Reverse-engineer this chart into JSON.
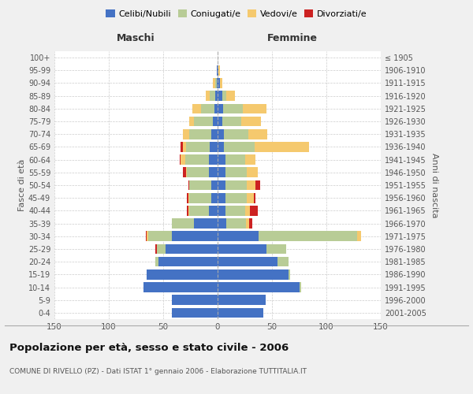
{
  "age_groups": [
    "0-4",
    "5-9",
    "10-14",
    "15-19",
    "20-24",
    "25-29",
    "30-34",
    "35-39",
    "40-44",
    "45-49",
    "50-54",
    "55-59",
    "60-64",
    "65-69",
    "70-74",
    "75-79",
    "80-84",
    "85-89",
    "90-94",
    "95-99",
    "100+"
  ],
  "birth_years": [
    "2001-2005",
    "1996-2000",
    "1991-1995",
    "1986-1990",
    "1981-1985",
    "1976-1980",
    "1971-1975",
    "1966-1970",
    "1961-1965",
    "1956-1960",
    "1951-1955",
    "1946-1950",
    "1941-1945",
    "1936-1940",
    "1931-1935",
    "1926-1930",
    "1921-1925",
    "1916-1920",
    "1911-1915",
    "1906-1910",
    "≤ 1905"
  ],
  "male_celibi": [
    42,
    42,
    68,
    65,
    54,
    48,
    42,
    22,
    8,
    6,
    6,
    8,
    8,
    7,
    6,
    4,
    3,
    2,
    1,
    1,
    0
  ],
  "male_coniugati": [
    0,
    0,
    0,
    0,
    3,
    8,
    22,
    20,
    18,
    20,
    20,
    20,
    22,
    22,
    20,
    18,
    12,
    5,
    1,
    0,
    0
  ],
  "male_vedovi": [
    0,
    0,
    0,
    0,
    0,
    0,
    1,
    0,
    1,
    1,
    0,
    1,
    4,
    3,
    6,
    4,
    8,
    4,
    2,
    0,
    0
  ],
  "male_divorziati": [
    0,
    0,
    0,
    0,
    0,
    1,
    1,
    0,
    1,
    1,
    1,
    3,
    1,
    2,
    0,
    0,
    0,
    0,
    0,
    0,
    0
  ],
  "female_celibi": [
    42,
    44,
    75,
    65,
    55,
    45,
    38,
    8,
    7,
    7,
    7,
    7,
    7,
    6,
    6,
    4,
    5,
    4,
    2,
    1,
    0
  ],
  "female_coniugati": [
    0,
    0,
    2,
    2,
    10,
    18,
    90,
    18,
    18,
    20,
    20,
    20,
    18,
    28,
    22,
    18,
    18,
    4,
    0,
    0,
    0
  ],
  "female_vedovi": [
    0,
    0,
    0,
    0,
    0,
    0,
    4,
    3,
    5,
    6,
    8,
    10,
    10,
    50,
    18,
    18,
    22,
    8,
    2,
    1,
    0
  ],
  "female_divorziati": [
    0,
    0,
    0,
    0,
    0,
    0,
    0,
    3,
    7,
    2,
    4,
    0,
    0,
    0,
    0,
    0,
    0,
    0,
    0,
    0,
    0
  ],
  "colors": {
    "celibi": "#4472c4",
    "coniugati": "#b8cc96",
    "vedovi": "#f5c96e",
    "divorziati": "#cc2222"
  },
  "title": "Popolazione per età, sesso e stato civile - 2006",
  "subtitle": "COMUNE DI RIVELLO (PZ) - Dati ISTAT 1° gennaio 2006 - Elaborazione TUTTITALIA.IT",
  "ylabel_left": "Fasce di età",
  "ylabel_right": "Anni di nascita",
  "xlabel_left": "Maschi",
  "xlabel_right": "Femmine",
  "xlim": 150,
  "xticks": [
    -150,
    -100,
    -50,
    0,
    50,
    100,
    150
  ],
  "legend_labels": [
    "Celibi/Nubili",
    "Coniugati/e",
    "Vedovi/e",
    "Divorziati/e"
  ],
  "bg_color": "#f0f0f0",
  "plot_bg_color": "#ffffff",
  "grid_color": "#cccccc",
  "bar_height": 0.78
}
